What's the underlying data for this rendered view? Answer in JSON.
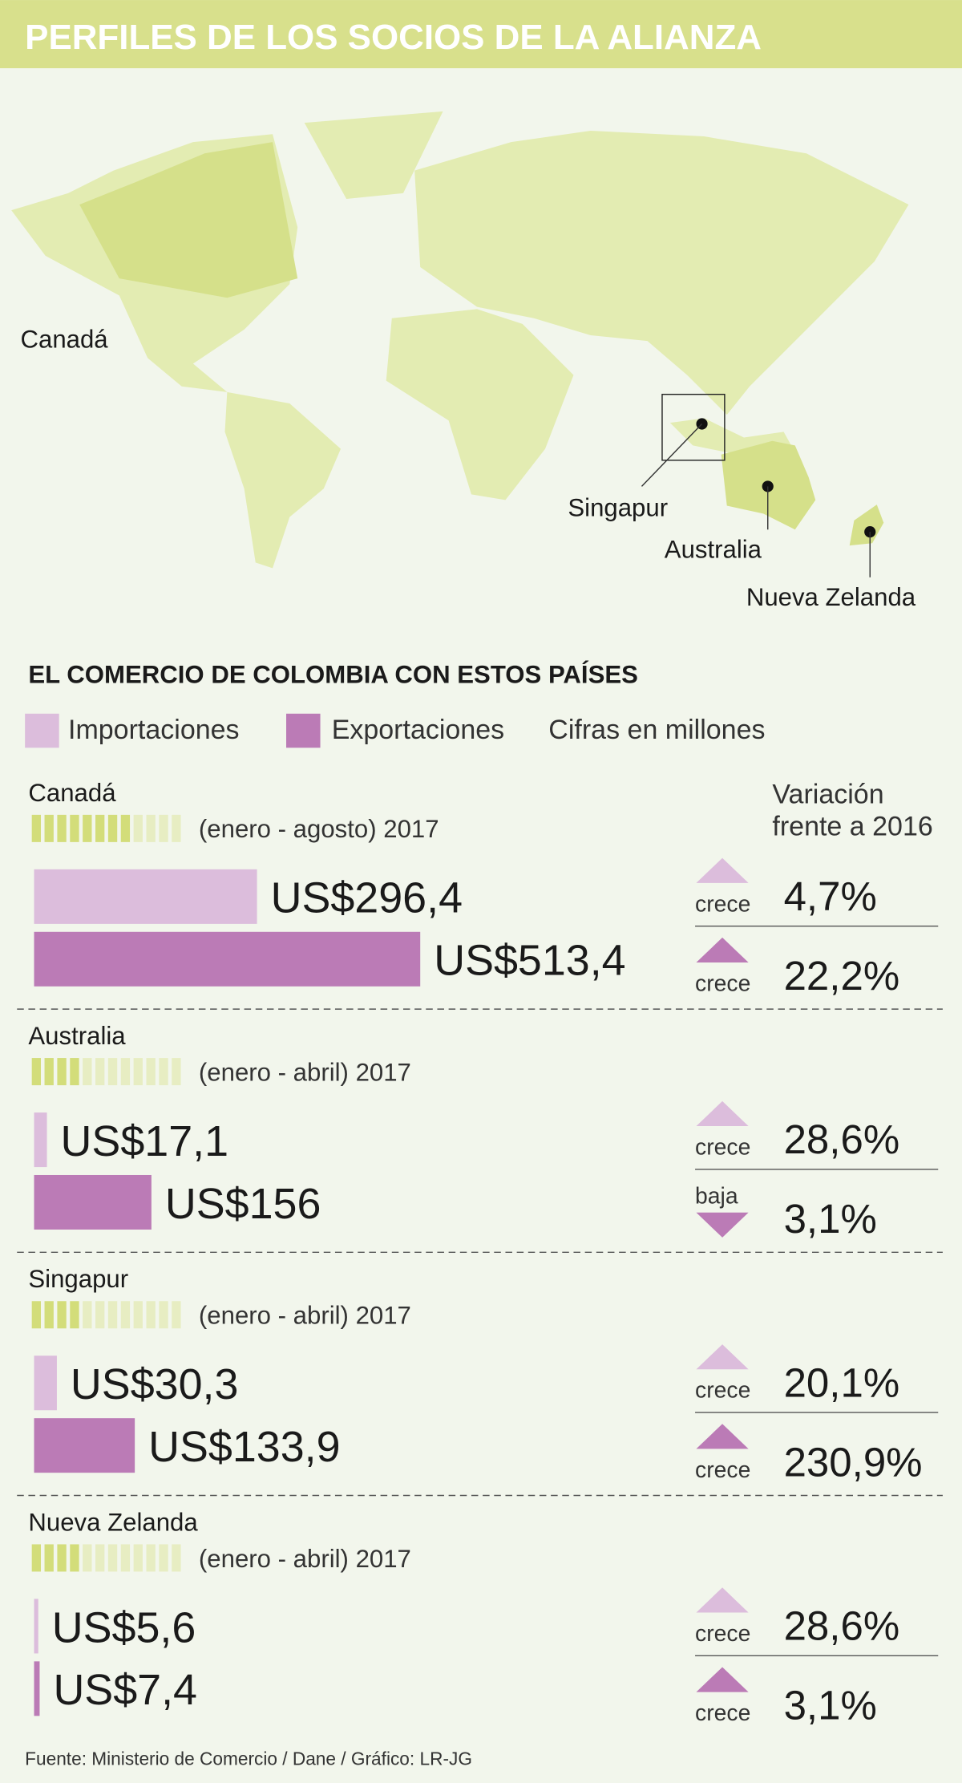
{
  "header": {
    "title": "PERFILES DE LOS SOCIOS DE LA ALIANZA"
  },
  "map": {
    "labels": [
      "Canadá",
      "Singapur",
      "Australia",
      "Nueva Zelanda"
    ]
  },
  "section": {
    "title": "EL COMERCIO DE COLOMBIA CON ESTOS PAÍSES",
    "legend": [
      "Importaciones",
      "Exportaciones"
    ],
    "note": "Cifras en millones",
    "variation_header": [
      "Variación",
      "frente a 2016"
    ]
  },
  "import_color": "#dcbddc",
  "export_color": "#bb7bb6",
  "countries": [
    {
      "name": "Canadá",
      "period": "(enero - agosto) 2017",
      "months": 8,
      "imports": {
        "value": 296.4,
        "label": "US$296,4",
        "trend": "crece",
        "direction": "up",
        "change": "4,7%"
      },
      "exports": {
        "value": 513.4,
        "label": "US$513,4",
        "trend": "crece",
        "direction": "up",
        "change": "22,2%"
      }
    },
    {
      "name": "Australia",
      "period": "(enero - abril) 2017",
      "months": 4,
      "imports": {
        "value": 17.1,
        "label": "US$17,1",
        "trend": "crece",
        "direction": "up",
        "change": "28,6%"
      },
      "exports": {
        "value": 156,
        "label": "US$156",
        "trend": "baja",
        "direction": "down",
        "change": "3,1%"
      }
    },
    {
      "name": "Singapur",
      "period": "(enero - abril) 2017",
      "months": 4,
      "imports": {
        "value": 30.3,
        "label": "US$30,3",
        "trend": "crece",
        "direction": "up",
        "change": "20,1%"
      },
      "exports": {
        "value": 133.9,
        "label": "US$133,9",
        "trend": "crece",
        "direction": "up",
        "change": "230,9%"
      }
    },
    {
      "name": "Nueva Zelanda",
      "period": "(enero - abril) 2017",
      "months": 4,
      "imports": {
        "value": 5.6,
        "label": "US$5,6",
        "trend": "crece",
        "direction": "up",
        "change": "28,6%"
      },
      "exports": {
        "value": 7.4,
        "label": "US$7,4",
        "trend": "crece",
        "direction": "up",
        "change": "3,1%"
      }
    }
  ],
  "source": "Fuente: Ministerio de Comercio / Dane / Gráfico: LR-JG"
}
